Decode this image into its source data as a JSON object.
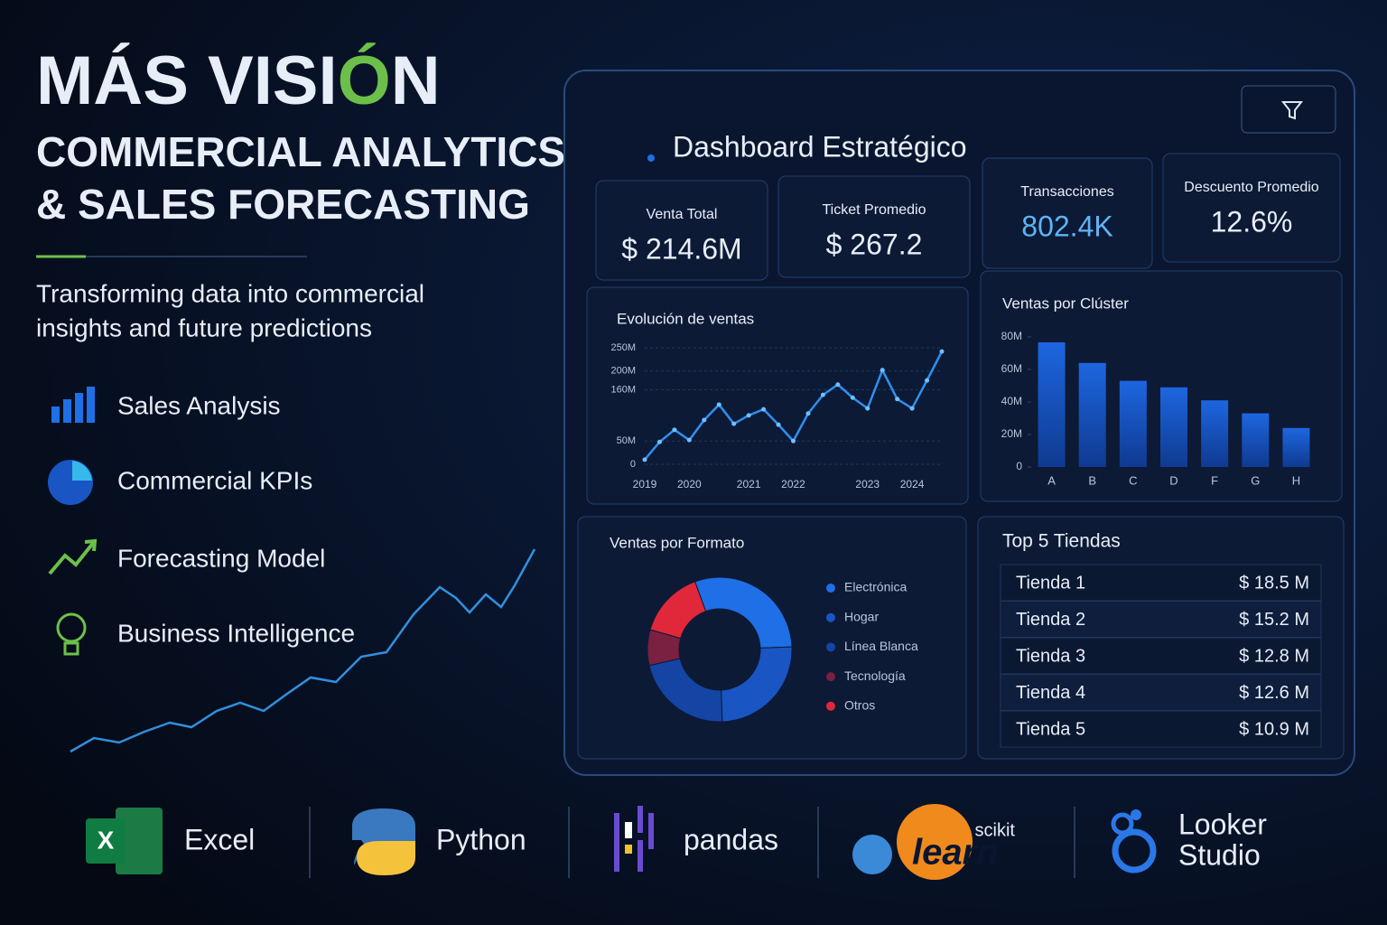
{
  "header": {
    "title": [
      "MÁS VISI",
      "Ó",
      "N"
    ],
    "subtitle": [
      "COMMERCIAL ANALYTICS",
      "& SALES FORECASTING"
    ],
    "tagline": [
      "Transforming data into commercial",
      "insights and future predictions"
    ]
  },
  "features": [
    "Sales Analysis",
    "Commercial KPIs",
    "Forecasting Model",
    "Business Intelligence"
  ],
  "dashboard": {
    "title": "Dashboard Estratégico",
    "kpis": [
      {
        "label": "Venta Total",
        "value": "$ 214.6M"
      },
      {
        "label": "Ticket Promedio",
        "value": "$ 267.2"
      },
      {
        "label": "Transacciones",
        "value": "802.4K"
      },
      {
        "label": "Descuento Promedio",
        "value": "12.6%"
      }
    ],
    "top_stores": {
      "title": "Top 5 Tiendas",
      "rows": [
        [
          "Tienda 1",
          "$ 18.5 M"
        ],
        [
          "Tienda 2",
          "$ 15.2 M"
        ],
        [
          "Tienda 3",
          "$ 12.8 M"
        ],
        [
          "Tienda 4",
          "$ 12.6 M"
        ],
        [
          "Tienda 5",
          "$ 10.9 M"
        ]
      ]
    }
  },
  "chart_data": [
    {
      "type": "line",
      "title": "Evolución de ventas",
      "categories": [
        "2019",
        null,
        null,
        "2020",
        null,
        null,
        null,
        "2021",
        null,
        null,
        "2022",
        null,
        null,
        null,
        null,
        "2023",
        null,
        null,
        "2024",
        null,
        null
      ],
      "values": [
        10,
        48,
        74,
        52,
        95,
        128,
        87,
        105,
        118,
        85,
        50,
        109,
        149,
        171,
        143,
        120,
        202,
        140,
        120,
        180,
        242
      ],
      "color": "#2f8ff0",
      "ylim": [
        0,
        250
      ],
      "yticks": [
        0,
        {
          "value": 50,
          "label": "50M"
        },
        {
          "value": 160,
          "label": "160M"
        },
        {
          "value": 200,
          "label": "200M"
        },
        {
          "value": 250,
          "label": "250M"
        }
      ],
      "grid": true
    },
    {
      "type": "bar",
      "title": "Ventas por Clúster",
      "categories": [
        "A",
        "B",
        "C",
        "D",
        "F",
        "G",
        "H"
      ],
      "values": [
        76.7,
        64,
        53,
        49,
        41,
        33,
        24
      ],
      "color": "#1a5fd0",
      "ylim": [
        0,
        80
      ],
      "yticks": [
        0,
        {
          "value": 20,
          "label": "20M"
        },
        {
          "value": 40,
          "label": "40M"
        },
        {
          "value": 60,
          "label": "60M"
        },
        {
          "value": 80,
          "label": "80M"
        }
      ]
    },
    {
      "type": "pie",
      "title": "Ventas por Formato",
      "categories": [
        "Electrónica",
        "Hogar",
        "Línea Blanca",
        "Tecnología",
        "Otros"
      ],
      "values": [
        30,
        25,
        22,
        8,
        15
      ],
      "colors": [
        "#1f6fe6",
        "#1a55c4",
        "#1545a4",
        "#7a2040",
        "#e0283a"
      ],
      "donut": true
    }
  ],
  "tools": [
    [
      "Excel"
    ],
    [
      "Python"
    ],
    [
      "pandas"
    ],
    [
      "scikit",
      "learn"
    ],
    [
      "Looker",
      "Studio"
    ]
  ]
}
